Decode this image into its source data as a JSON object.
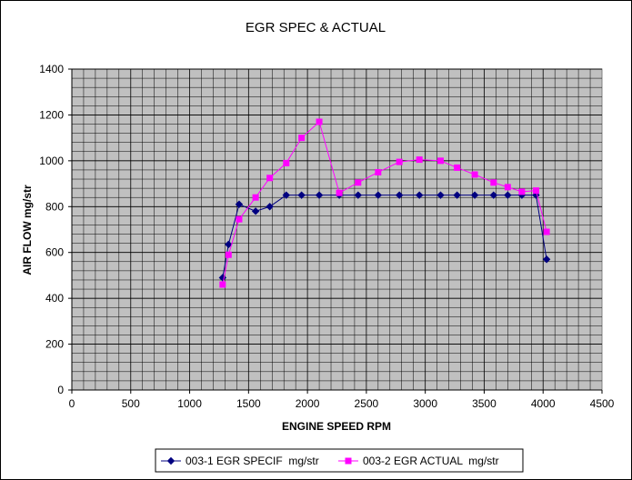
{
  "chart_data": {
    "type": "line",
    "title": "EGR SPEC & ACTUAL",
    "xlabel": "ENGINE SPEED RPM",
    "ylabel": "AIR FLOW mg/str",
    "xlim": [
      0,
      4500
    ],
    "ylim": [
      0,
      1400
    ],
    "xticks": [
      0,
      500,
      1000,
      1500,
      2000,
      2500,
      3000,
      3500,
      4000,
      4500
    ],
    "yticks": [
      0,
      200,
      400,
      600,
      800,
      1000,
      1200,
      1400
    ],
    "grid": true,
    "plot_background": "#c0c0c0",
    "legend_position": "bottom",
    "series": [
      {
        "name": "003-1 EGR SPECIF  mg/str",
        "color": "#000080",
        "marker": "diamond",
        "points": [
          [
            1280,
            490
          ],
          [
            1330,
            635
          ],
          [
            1420,
            810
          ],
          [
            1560,
            780
          ],
          [
            1680,
            800
          ],
          [
            1820,
            850
          ],
          [
            1950,
            850
          ],
          [
            2100,
            850
          ],
          [
            2270,
            850
          ],
          [
            2430,
            850
          ],
          [
            2600,
            850
          ],
          [
            2780,
            850
          ],
          [
            2950,
            850
          ],
          [
            3130,
            850
          ],
          [
            3270,
            850
          ],
          [
            3420,
            850
          ],
          [
            3580,
            850
          ],
          [
            3700,
            850
          ],
          [
            3820,
            850
          ],
          [
            3940,
            850
          ],
          [
            4030,
            570
          ]
        ]
      },
      {
        "name": "003-2 EGR ACTUAL  mg/str",
        "color": "#ff00ff",
        "marker": "square",
        "points": [
          [
            1280,
            460
          ],
          [
            1330,
            590
          ],
          [
            1420,
            745
          ],
          [
            1560,
            840
          ],
          [
            1680,
            925
          ],
          [
            1820,
            990
          ],
          [
            1950,
            1100
          ],
          [
            2100,
            1170
          ],
          [
            2270,
            860
          ],
          [
            2430,
            905
          ],
          [
            2600,
            950
          ],
          [
            2780,
            995
          ],
          [
            2950,
            1005
          ],
          [
            3130,
            1000
          ],
          [
            3270,
            970
          ],
          [
            3420,
            940
          ],
          [
            3580,
            905
          ],
          [
            3700,
            885
          ],
          [
            3820,
            865
          ],
          [
            3940,
            870
          ],
          [
            4030,
            690
          ]
        ]
      }
    ]
  }
}
